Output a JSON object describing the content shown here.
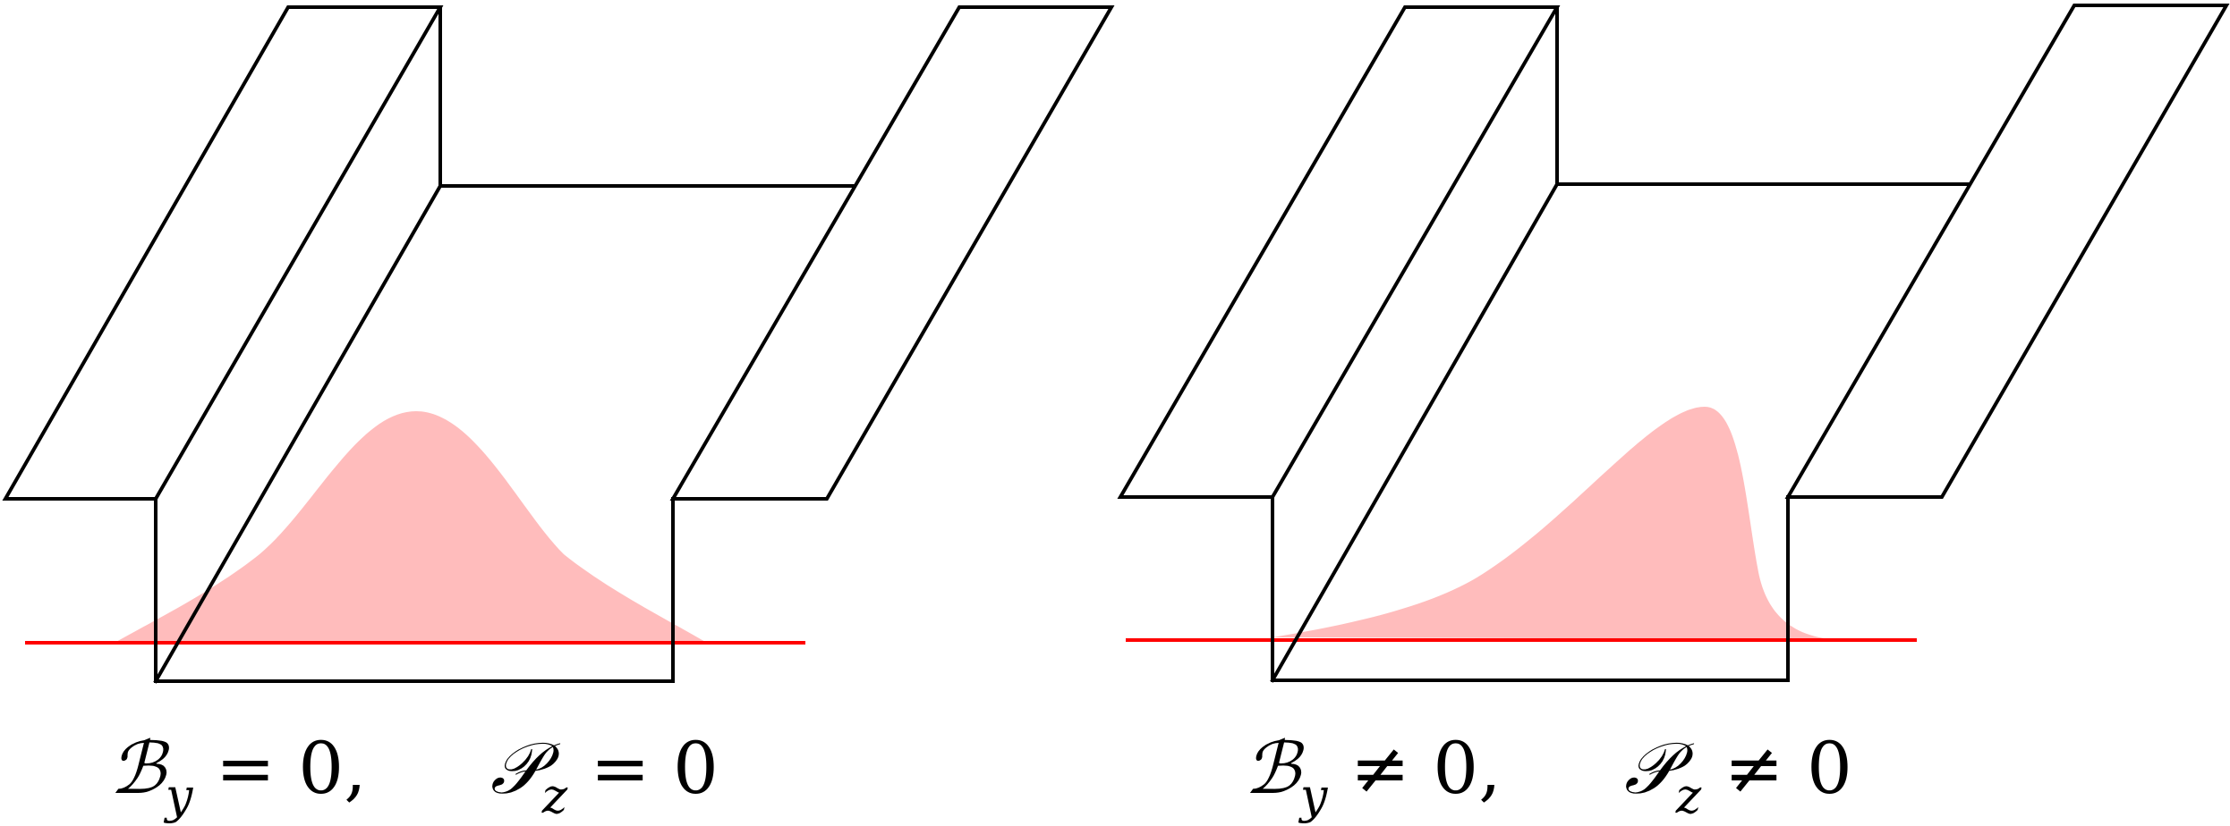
{
  "colors": {
    "outline": "#000000",
    "distribution": "#ffbcbc",
    "baseline": "#ff0000"
  },
  "panels": [
    {
      "distribution": "symmetric",
      "eq_b": {
        "symbol": "ℬ",
        "sub": "y",
        "relation": "= 0,"
      },
      "eq_p": {
        "symbol": "𝒫",
        "sub": "z",
        "relation": "= 0"
      }
    },
    {
      "distribution": "skewed",
      "eq_b": {
        "symbol": "ℬ",
        "sub": "y",
        "relation": "≠ 0,"
      },
      "eq_p": {
        "symbol": "𝒫",
        "sub": "z",
        "relation": "≠ 0"
      }
    }
  ]
}
